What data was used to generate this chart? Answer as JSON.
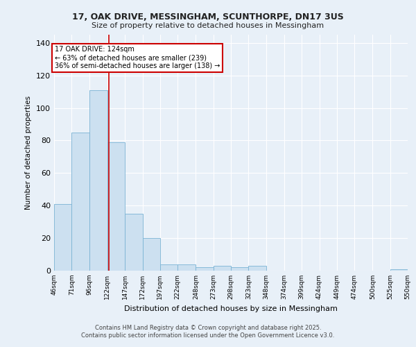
{
  "title1": "17, OAK DRIVE, MESSINGHAM, SCUNTHORPE, DN17 3US",
  "title2": "Size of property relative to detached houses in Messingham",
  "xlabel": "Distribution of detached houses by size in Messingham",
  "ylabel": "Number of detached properties",
  "footer1": "Contains HM Land Registry data © Crown copyright and database right 2025.",
  "footer2": "Contains public sector information licensed under the Open Government Licence v3.0.",
  "bar_color": "#cce0f0",
  "bar_edge_color": "#7ab3d4",
  "annotation_text": "17 OAK DRIVE: 124sqm\n← 63% of detached houses are smaller (239)\n36% of semi-detached houses are larger (138) →",
  "annotation_box_color": "#ffffff",
  "annotation_box_edge": "#cc0000",
  "vline_color": "#cc0000",
  "vline_x": 124,
  "background_color": "#e8f0f8",
  "ylim": [
    0,
    145
  ],
  "yticks": [
    0,
    20,
    40,
    60,
    80,
    100,
    120,
    140
  ],
  "bin_edges": [
    46,
    71,
    96,
    122,
    147,
    172,
    197,
    222,
    248,
    273,
    298,
    323,
    348,
    374,
    399,
    424,
    449,
    474,
    500,
    525,
    550
  ],
  "bin_heights": [
    41,
    85,
    111,
    79,
    35,
    20,
    4,
    4,
    2,
    3,
    2,
    3,
    0,
    0,
    0,
    0,
    0,
    0,
    0,
    1
  ],
  "tick_labels": [
    "46sqm",
    "71sqm",
    "96sqm",
    "122sqm",
    "147sqm",
    "172sqm",
    "197sqm",
    "222sqm",
    "248sqm",
    "273sqm",
    "298sqm",
    "323sqm",
    "348sqm",
    "374sqm",
    "399sqm",
    "424sqm",
    "449sqm",
    "474sqm",
    "500sqm",
    "525sqm",
    "550sqm"
  ]
}
